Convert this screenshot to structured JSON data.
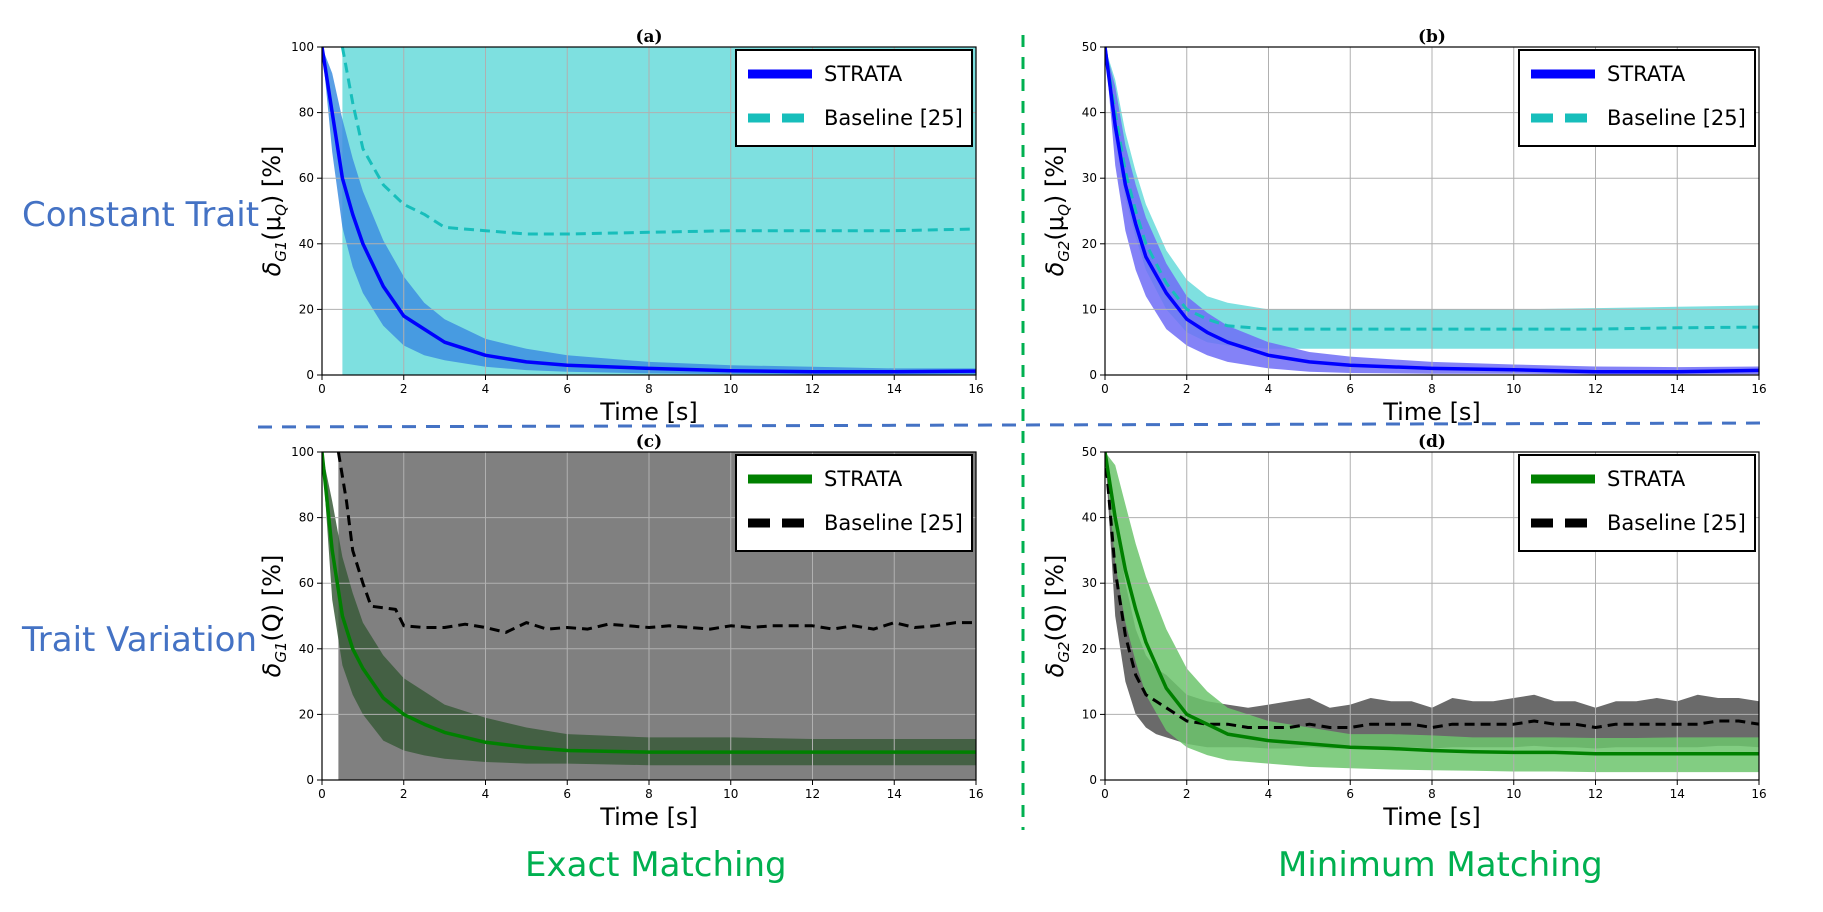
{
  "row_labels": [
    "Constant Trait",
    "Trait Variation"
  ],
  "col_labels": [
    "Exact Matching",
    "Minimum Matching"
  ],
  "colors": {
    "row_label": "#4472c4",
    "col_label": "#00b050",
    "blue_line": "#0000ff",
    "blue_band_dark": "#2e6fe8",
    "blue_band_light": "#6f6cf6",
    "cyan_line": "#17bebb",
    "cyan_band": "#7ee0e0",
    "green_line": "#008000",
    "green_band": "#6cc46c",
    "black_line": "#000000",
    "gray_band": "#808080"
  },
  "chart_data": [
    {
      "id": "a",
      "type": "line",
      "title": "(a)",
      "xlabel": "Time [s]",
      "ylabel": "δ_{G1}(μ_Q) [%]",
      "xlim": [
        0,
        16
      ],
      "ylim": [
        0,
        100
      ],
      "xticks": [
        0,
        2,
        4,
        6,
        8,
        10,
        12,
        14,
        16
      ],
      "yticks": [
        0,
        20,
        40,
        60,
        80,
        100
      ],
      "grid": true,
      "legend_position": "top-right",
      "series": [
        {
          "name": "STRATA",
          "style": "solid",
          "color": "#0000ff",
          "x": [
            0,
            0.25,
            0.5,
            0.75,
            1,
            1.5,
            2,
            2.5,
            3,
            4,
            5,
            6,
            8,
            10,
            12,
            14,
            16
          ],
          "y": [
            100,
            80,
            60,
            49,
            40,
            27,
            18,
            14,
            10,
            6,
            4,
            3,
            2,
            1.3,
            1,
            1,
            1.2
          ],
          "band_lower": [
            100,
            68,
            45,
            33,
            25,
            15,
            9,
            6,
            4.5,
            2.5,
            1.5,
            1,
            0.5,
            0.3,
            0.2,
            0.2,
            0.2
          ],
          "band_upper": [
            100,
            92,
            78,
            66,
            56,
            41,
            30,
            22,
            17,
            11,
            8,
            6,
            4,
            3,
            2.5,
            2,
            2
          ],
          "band_color": "#3d8ee0"
        },
        {
          "name": "Baseline [25]",
          "style": "dashed",
          "color": "#17bebb",
          "x": [
            0.5,
            0.75,
            1,
            1.5,
            2,
            2.5,
            3,
            4,
            5,
            6,
            8,
            10,
            12,
            14,
            16
          ],
          "y": [
            100,
            83,
            69,
            58,
            52,
            49,
            45,
            44,
            43,
            43,
            43.5,
            44,
            44,
            44,
            44.5
          ],
          "band_lower": [
            0,
            0,
            0,
            0,
            0,
            0,
            0,
            0,
            0,
            0,
            0,
            0,
            0,
            0,
            0
          ],
          "band_upper": [
            100,
            100,
            100,
            100,
            100,
            100,
            100,
            100,
            100,
            100,
            100,
            100,
            100,
            100,
            100
          ],
          "band_color": "#7ee0e0"
        }
      ]
    },
    {
      "id": "b",
      "type": "line",
      "title": "(b)",
      "xlabel": "Time [s]",
      "ylabel": "δ_{G2}(μ_Q) [%]",
      "xlim": [
        0,
        16
      ],
      "ylim": [
        0,
        50
      ],
      "xticks": [
        0,
        2,
        4,
        6,
        8,
        10,
        12,
        14,
        16
      ],
      "yticks": [
        0,
        10,
        20,
        30,
        40,
        50
      ],
      "grid": true,
      "legend_position": "top-right",
      "series": [
        {
          "name": "STRATA",
          "style": "solid",
          "color": "#0000ff",
          "x": [
            0,
            0.25,
            0.5,
            0.75,
            1,
            1.5,
            2,
            2.5,
            3,
            4,
            5,
            6,
            8,
            10,
            12,
            14,
            16
          ],
          "y": [
            50,
            38,
            29,
            23,
            18,
            12.5,
            8.5,
            6.5,
            5,
            3,
            2,
            1.5,
            1,
            0.8,
            0.5,
            0.5,
            0.7
          ],
          "band_lower": [
            50,
            32,
            22,
            16,
            12,
            7,
            4.5,
            3,
            2,
            1,
            0.5,
            0.3,
            0.2,
            0.2,
            0.1,
            0.1,
            0.1
          ],
          "band_upper": [
            50,
            44,
            35,
            29,
            24,
            17,
            12,
            9.5,
            7.5,
            5,
            3.5,
            2.8,
            2,
            1.6,
            1.3,
            1.2,
            1.3
          ],
          "band_color": "#6f6cf6"
        },
        {
          "name": "Baseline [25]",
          "style": "dashed",
          "color": "#17bebb",
          "x": [
            0,
            0.25,
            0.5,
            0.75,
            1,
            1.5,
            2,
            2.5,
            3,
            4,
            5,
            6,
            8,
            10,
            12,
            14,
            16
          ],
          "y": [
            50,
            40,
            31,
            25,
            20,
            14,
            10,
            8.5,
            7.5,
            7,
            7,
            7,
            7,
            7,
            7,
            7.2,
            7.3
          ],
          "band_lower": [
            50,
            36,
            27,
            21,
            16,
            10,
            6.5,
            5,
            4.5,
            4,
            4,
            4,
            4,
            4,
            4,
            4,
            4
          ],
          "band_upper": [
            50,
            45,
            37,
            31,
            26,
            19,
            14.5,
            12,
            11,
            10,
            10,
            10,
            10,
            10,
            10.2,
            10.4,
            10.6
          ],
          "band_color": "#7ee0e0"
        }
      ]
    },
    {
      "id": "c",
      "type": "line",
      "title": "(c)",
      "xlabel": "Time [s]",
      "ylabel": "δ_{G1}(Q) [%]",
      "xlim": [
        0,
        16
      ],
      "ylim": [
        0,
        100
      ],
      "xticks": [
        0,
        2,
        4,
        6,
        8,
        10,
        12,
        14,
        16
      ],
      "yticks": [
        0,
        20,
        40,
        60,
        80,
        100
      ],
      "grid": true,
      "legend_position": "top-right",
      "series": [
        {
          "name": "STRATA",
          "style": "solid",
          "color": "#008000",
          "x": [
            0,
            0.25,
            0.5,
            0.75,
            1,
            1.5,
            2,
            2.5,
            3,
            4,
            5,
            6,
            8,
            10,
            12,
            14,
            16
          ],
          "y": [
            100,
            70,
            50,
            40,
            34,
            25,
            20,
            17,
            14.5,
            11.5,
            10,
            9,
            8.5,
            8.5,
            8.5,
            8.5,
            8.5
          ],
          "band_lower": [
            100,
            55,
            35,
            26,
            20,
            12,
            9,
            7.5,
            6.5,
            5.5,
            5,
            5,
            4.5,
            4.5,
            4.5,
            4.5,
            4.5
          ],
          "band_upper": [
            100,
            85,
            68,
            57,
            48,
            38,
            31,
            27,
            23,
            19,
            16,
            14,
            13,
            13,
            12.5,
            12.5,
            12.5
          ],
          "band_color": "#3a5a3a"
        },
        {
          "name": "Baseline [25]",
          "style": "dashed",
          "color": "#000000",
          "x": [
            0.4,
            0.6,
            0.75,
            1,
            1.2,
            1.5,
            1.8,
            2,
            2.5,
            3,
            3.5,
            4,
            4.5,
            5,
            5.5,
            6,
            6.5,
            7,
            7.5,
            8,
            8.5,
            9,
            9.5,
            10,
            10.5,
            11,
            11.5,
            12,
            12.5,
            13,
            13.5,
            14,
            14.5,
            15,
            15.5,
            16
          ],
          "y": [
            100,
            85,
            70,
            60,
            53,
            52.5,
            52,
            47,
            46.5,
            46.5,
            47.5,
            46.5,
            45,
            48,
            46,
            46.5,
            46,
            47.5,
            47,
            46.5,
            47,
            46.5,
            46,
            47,
            46.5,
            47,
            47,
            47,
            46,
            47,
            46,
            48,
            46.5,
            47,
            48,
            48
          ],
          "band_lower": [
            0,
            0,
            0,
            0,
            0,
            0,
            0,
            0,
            0,
            0,
            0,
            0,
            0,
            0,
            0,
            0,
            0,
            0,
            0,
            0,
            0,
            0,
            0,
            0,
            0,
            0,
            0,
            0,
            0,
            0,
            0,
            0,
            0,
            0,
            0,
            0
          ],
          "band_upper": [
            100,
            100,
            100,
            100,
            100,
            100,
            100,
            100,
            100,
            100,
            100,
            100,
            100,
            100,
            100,
            100,
            100,
            100,
            100,
            100,
            100,
            100,
            100,
            100,
            100,
            100,
            100,
            100,
            100,
            100,
            100,
            100,
            100,
            100,
            100,
            100
          ],
          "band_color": "#808080"
        }
      ]
    },
    {
      "id": "d",
      "type": "line",
      "title": "(d)",
      "xlabel": "Time [s]",
      "ylabel": "δ_{G2}(Q) [%]",
      "xlim": [
        0,
        16
      ],
      "ylim": [
        0,
        50
      ],
      "xticks": [
        0,
        2,
        4,
        6,
        8,
        10,
        12,
        14,
        16
      ],
      "yticks": [
        0,
        10,
        20,
        30,
        40,
        50
      ],
      "grid": true,
      "legend_position": "top-right",
      "series": [
        {
          "name": "STRATA",
          "style": "solid",
          "color": "#008000",
          "x": [
            0,
            0.25,
            0.5,
            0.75,
            1,
            1.5,
            2,
            2.5,
            3,
            4,
            5,
            6,
            7,
            8,
            9,
            10,
            11,
            12,
            13,
            14,
            15,
            16
          ],
          "y": [
            50,
            40,
            32,
            26,
            21,
            14,
            10,
            8.5,
            7,
            6,
            5.5,
            5,
            4.8,
            4.5,
            4.3,
            4.2,
            4.2,
            4,
            4,
            4,
            4,
            4
          ],
          "band_lower": [
            50,
            33,
            24,
            18,
            13,
            7.5,
            5,
            3.8,
            3,
            2.5,
            2,
            1.8,
            1.6,
            1.5,
            1.4,
            1.3,
            1.3,
            1.2,
            1.2,
            1.2,
            1.2,
            1.2
          ],
          "band_upper": [
            50,
            48,
            42,
            36,
            31,
            23,
            17,
            13.5,
            11,
            9,
            8,
            7,
            7,
            6.8,
            6.5,
            6.5,
            6.5,
            6.4,
            6.4,
            6.5,
            6.5,
            6.5
          ],
          "band_color": "#6cc46c"
        },
        {
          "name": "Baseline [25]",
          "style": "dashed",
          "color": "#000000",
          "x": [
            0,
            0.25,
            0.5,
            0.75,
            1,
            1.25,
            1.5,
            2,
            2.5,
            3,
            3.5,
            4,
            4.5,
            5,
            5.5,
            6,
            6.5,
            7,
            7.5,
            8,
            8.5,
            9,
            9.5,
            10,
            10.5,
            11,
            11.5,
            12,
            12.5,
            13,
            13.5,
            14,
            14.5,
            15,
            15.5,
            16
          ],
          "y": [
            50,
            32,
            22,
            16,
            13,
            12,
            11,
            9,
            8.5,
            8.5,
            8,
            8,
            8,
            8.5,
            8,
            8,
            8.5,
            8.5,
            8.5,
            8,
            8.5,
            8.5,
            8.5,
            8.5,
            9,
            8.5,
            8.5,
            8,
            8.5,
            8.5,
            8.5,
            8.5,
            8.5,
            9,
            9,
            8.5
          ],
          "band_lower": [
            50,
            25,
            15,
            10,
            8,
            7,
            6.5,
            5.5,
            5,
            5,
            5,
            4.8,
            4.8,
            5,
            4.8,
            4.8,
            5,
            5,
            5,
            4.8,
            5,
            5,
            5,
            5,
            5.2,
            5,
            5,
            4.8,
            5,
            5,
            5,
            5,
            5,
            5.2,
            5.2,
            5
          ],
          "band_upper": [
            50,
            40,
            30,
            23,
            19,
            17,
            16,
            13,
            12,
            11.5,
            11,
            11.5,
            12,
            12.5,
            11,
            11.5,
            12.5,
            12,
            12,
            11,
            12.5,
            12,
            12,
            12.5,
            13,
            12,
            12,
            11,
            12,
            12,
            12.5,
            12,
            13,
            12.5,
            12.5,
            12
          ],
          "band_color": "#6a6a6a"
        }
      ]
    }
  ]
}
